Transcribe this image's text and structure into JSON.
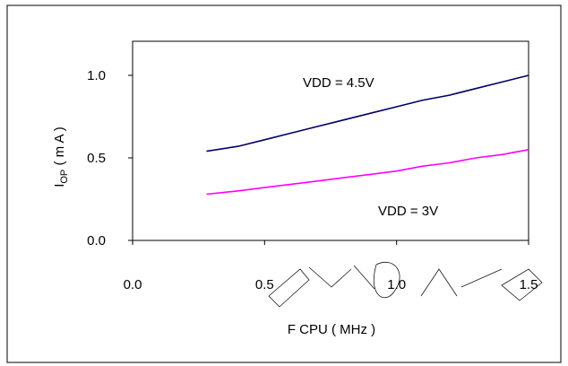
{
  "chart_data": {
    "type": "line",
    "x_ticks": [
      "0.0",
      "0.5",
      "1.0",
      "1.5"
    ],
    "y_ticks": [
      "0.0",
      "0.5",
      "1.0"
    ],
    "xlim": [
      0,
      1.5
    ],
    "ylim": [
      0,
      1.0
    ],
    "xlabel": "F CPU ( MHz )",
    "ylabel_main": "I",
    "ylabel_sub": "OP",
    "ylabel_unit": " ( m A )",
    "grid": false,
    "series": [
      {
        "name": "VDD = 4.5V",
        "color": "#000066",
        "x": [
          0.28,
          0.4,
          0.5,
          0.6,
          0.7,
          0.8,
          0.9,
          1.0,
          1.1,
          1.2,
          1.3,
          1.4,
          1.5
        ],
        "y": [
          0.54,
          0.57,
          0.61,
          0.65,
          0.69,
          0.73,
          0.77,
          0.81,
          0.85,
          0.88,
          0.92,
          0.96,
          1.0
        ]
      },
      {
        "name": "VDD = 3V",
        "color": "#FF00FF",
        "x": [
          0.28,
          0.4,
          0.5,
          0.6,
          0.7,
          0.8,
          0.9,
          1.0,
          1.1,
          1.2,
          1.3,
          1.4,
          1.5
        ],
        "y": [
          0.28,
          0.3,
          0.32,
          0.34,
          0.36,
          0.38,
          0.4,
          0.42,
          0.45,
          0.47,
          0.5,
          0.52,
          0.55
        ]
      }
    ]
  }
}
